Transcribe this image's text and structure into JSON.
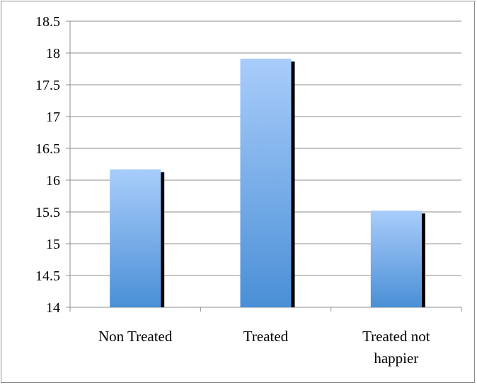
{
  "chart_data": {
    "type": "bar",
    "title": "",
    "xlabel": "",
    "ylabel": "",
    "categories": [
      [
        "Non Treated"
      ],
      [
        "Treated"
      ],
      [
        "Treated not",
        "happier"
      ]
    ],
    "values": [
      16.17,
      17.91,
      15.52
    ],
    "ylim": [
      14,
      18.5
    ],
    "yticks": [
      "14",
      "14.5",
      "15",
      "15.5",
      "16",
      "16.5",
      "17",
      "17.5",
      "18",
      "18.5"
    ],
    "grid": true,
    "legend": "none",
    "colors": {
      "bar_top": "#a9cdfb",
      "bar_bottom": "#4a8fd6",
      "bar_shadow": "#000000",
      "grid": "#8c8c8c",
      "axis": "#8c8c8c"
    }
  }
}
